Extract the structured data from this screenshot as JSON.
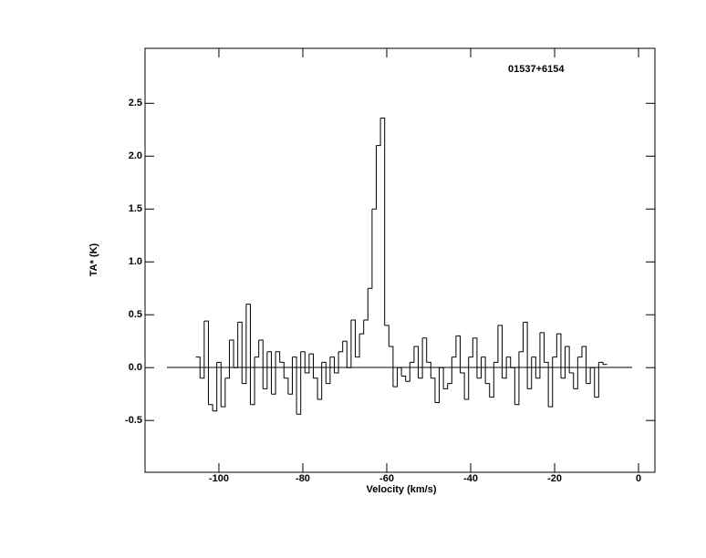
{
  "chart_data": {
    "type": "step",
    "annotation": "01537+6154",
    "xlabel": "Velocity (km/s)",
    "ylabel": "TA* (K)",
    "x": [
      -105,
      -104,
      -103,
      -102,
      -101,
      -100,
      -99,
      -98,
      -97,
      -96,
      -95,
      -94,
      -93,
      -92,
      -91,
      -90,
      -89,
      -88,
      -87,
      -86,
      -85,
      -84,
      -83,
      -82,
      -81,
      -80,
      -79,
      -78,
      -77,
      -76,
      -75,
      -74,
      -73,
      -72,
      -71,
      -70,
      -69,
      -68,
      -67,
      -66,
      -65,
      -64,
      -63,
      -62,
      -61,
      -60,
      -59,
      -58,
      -57,
      -56,
      -55,
      -54,
      -53,
      -52,
      -51,
      -50,
      -49,
      -48,
      -47,
      -46,
      -45,
      -44,
      -43,
      -42,
      -41,
      -40,
      -39,
      -38,
      -37,
      -36,
      -35,
      -34,
      -33,
      -32,
      -31,
      -30,
      -29,
      -28,
      -27,
      -26,
      -25,
      -24,
      -23,
      -22,
      -21,
      -20,
      -19,
      -18,
      -17,
      -16,
      -15,
      -14,
      -13,
      -12,
      -11,
      -10,
      -9,
      -8
    ],
    "values": [
      0.1,
      -0.1,
      0.44,
      -0.35,
      -0.41,
      0.05,
      -0.37,
      -0.1,
      0.26,
      0.0,
      0.43,
      -0.15,
      0.6,
      -0.35,
      0.1,
      0.26,
      -0.2,
      0.15,
      -0.25,
      0.15,
      0.05,
      -0.1,
      -0.25,
      0.1,
      -0.44,
      0.15,
      -0.05,
      0.13,
      -0.1,
      -0.3,
      0.05,
      -0.15,
      0.1,
      -0.05,
      0.15,
      0.25,
      0.0,
      0.45,
      0.1,
      0.32,
      0.45,
      0.75,
      1.5,
      2.1,
      2.36,
      0.4,
      0.2,
      -0.18,
      0.0,
      -0.08,
      -0.13,
      0.05,
      0.2,
      -0.1,
      0.28,
      0.05,
      -0.1,
      -0.33,
      0.0,
      -0.2,
      -0.15,
      0.1,
      0.3,
      -0.05,
      -0.3,
      0.1,
      0.28,
      -0.1,
      0.1,
      -0.15,
      -0.28,
      0.05,
      0.4,
      -0.1,
      0.1,
      0.0,
      -0.35,
      0.15,
      0.43,
      -0.2,
      0.1,
      -0.1,
      0.33,
      0.05,
      -0.37,
      0.1,
      0.32,
      -0.1,
      0.2,
      -0.05,
      -0.2,
      0.1,
      0.2,
      -0.15,
      0.0,
      -0.28,
      0.05,
      0.03
    ],
    "color": "#000000",
    "xlim": [
      -117.6,
      3.9
    ],
    "ylim": [
      -0.99,
      3.02
    ],
    "xticks": [
      -100,
      -80,
      -60,
      -40,
      -20,
      0
    ],
    "yticks": [
      -0.5,
      {
        "value": 0,
        "label": "0.0"
      },
      0.5,
      {
        "value": 1,
        "label": "1.0"
      },
      1.5,
      {
        "value": 2,
        "label": "2.0"
      },
      2.5
    ]
  }
}
